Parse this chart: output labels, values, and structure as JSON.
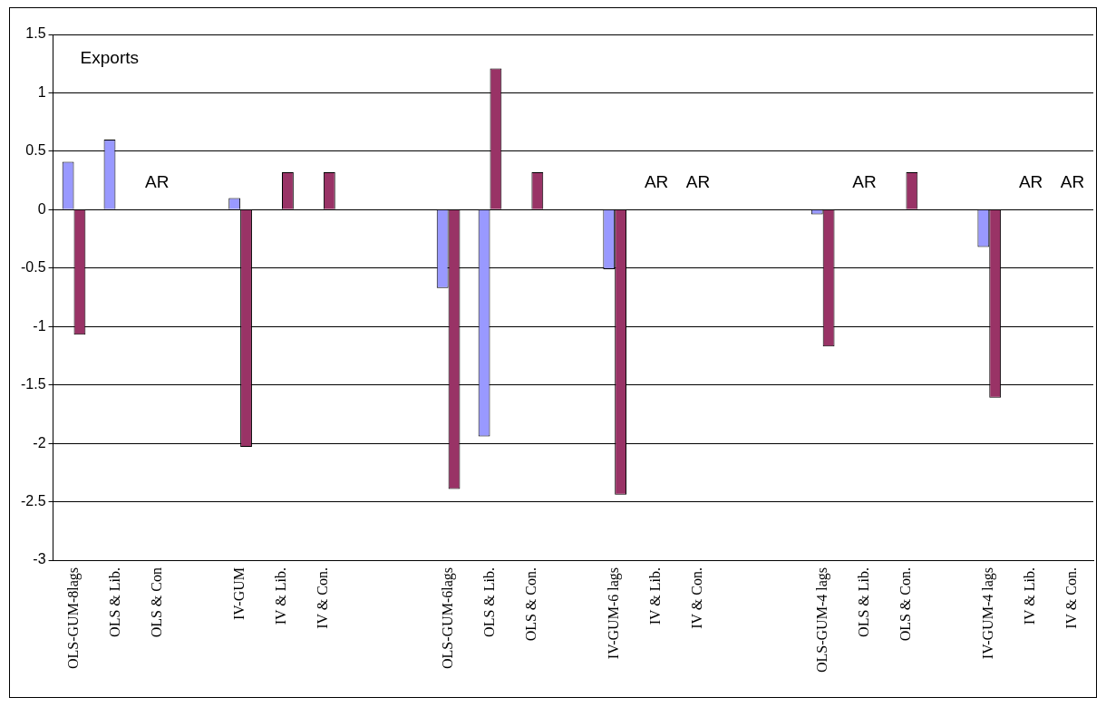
{
  "chart_data": {
    "type": "bar",
    "title": "Exports",
    "categories": [
      "OLS-GUM-8lags",
      "OLS & Lib.",
      "OLS & Con",
      null,
      "IV-GUM",
      "IV & Lib.",
      "IV & Con.",
      null,
      null,
      "OLS-GUM-6lags",
      "OLS & Lib.",
      "OLS & Con.",
      null,
      "IV-GUM-6 lags",
      "IV & Lib.",
      "IV & Con.",
      null,
      null,
      "OLS-GUM-4 lags",
      "OLS & Lib.",
      "OLS & Con.",
      null,
      "IV-GUM-4 lags",
      "IV & Lib.",
      "IV & Con."
    ],
    "series": [
      {
        "color": "#9999ff",
        "values": [
          0.41,
          0.6,
          null,
          null,
          0.1,
          null,
          null,
          null,
          null,
          -0.67,
          -1.94,
          null,
          null,
          -0.51,
          null,
          null,
          null,
          null,
          -0.04,
          null,
          null,
          null,
          -0.32,
          null,
          null
        ],
        "value_labels": [
          null,
          null,
          "AR",
          null,
          null,
          null,
          null,
          null,
          null,
          null,
          null,
          null,
          null,
          null,
          "AR",
          "AR",
          null,
          null,
          null,
          "AR",
          null,
          null,
          null,
          "AR",
          "AR"
        ]
      },
      {
        "color": "#993366",
        "values": [
          -1.07,
          null,
          null,
          null,
          -2.03,
          0.32,
          0.32,
          null,
          null,
          -2.39,
          1.21,
          0.32,
          null,
          -2.44,
          null,
          null,
          null,
          null,
          -1.17,
          null,
          0.32,
          null,
          -1.61,
          null,
          null
        ]
      }
    ],
    "ylim": [
      -3,
      1.5
    ],
    "yticks": [
      -3,
      -2.5,
      -2,
      -1.5,
      -1,
      -0.5,
      0,
      0.5,
      1,
      1.5
    ],
    "grid": "y",
    "legend": false
  }
}
